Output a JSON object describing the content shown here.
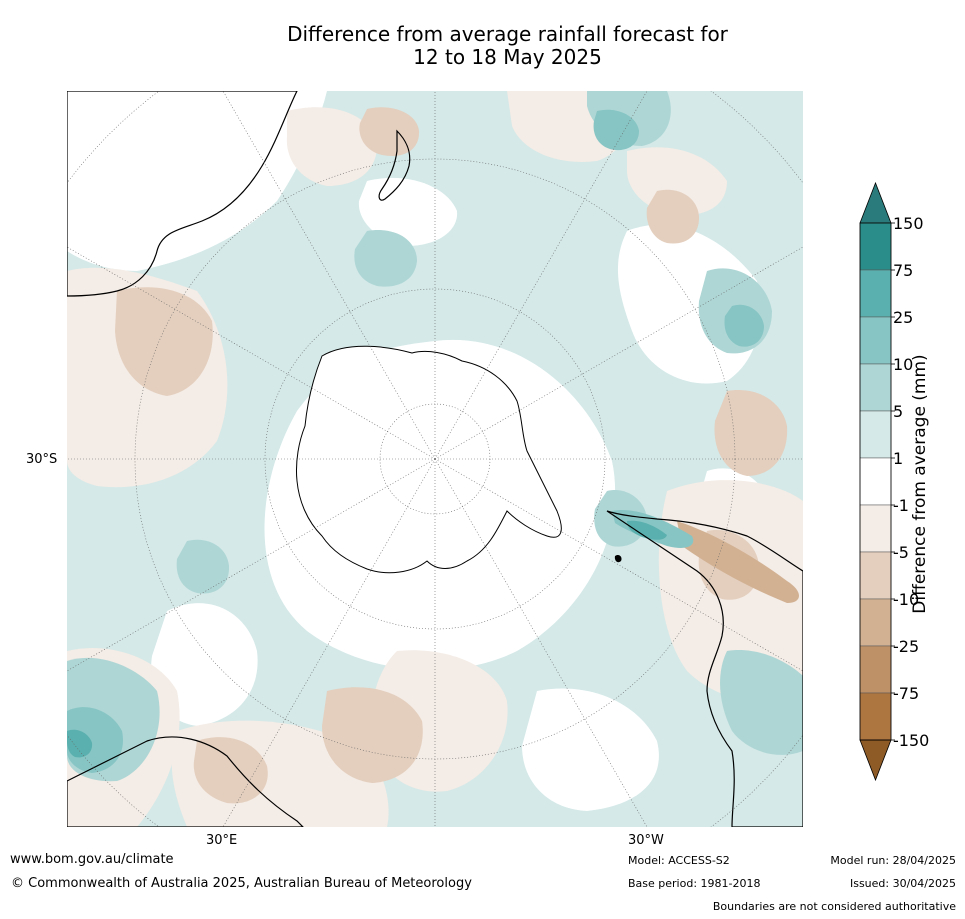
{
  "title": {
    "line1": "Difference from average rainfall forecast for",
    "line2": "12 to 18 May 2025"
  },
  "map": {
    "projection": "south polar stereographic",
    "latitude_label": "30°S",
    "longitude_labels": {
      "east": "30°E",
      "west": "30°W"
    }
  },
  "colorbar": {
    "label": "Difference from average (mm)",
    "levels": [
      {
        "tick": "150",
        "color": "#2a8d8a"
      },
      {
        "tick": "75",
        "color": "#5ab0ae"
      },
      {
        "tick": "25",
        "color": "#86c5c4"
      },
      {
        "tick": "10",
        "color": "#aed6d5"
      },
      {
        "tick": "5",
        "color": "#d4e9e8"
      },
      {
        "tick": "1",
        "color": "#ffffff"
      },
      {
        "tick": "-1",
        "color": "#f4ece6"
      },
      {
        "tick": "-5",
        "color": "#e4cfbe"
      },
      {
        "tick": "-10",
        "color": "#d2b193"
      },
      {
        "tick": "-25",
        "color": "#bf9167"
      },
      {
        "tick": "-75",
        "color": "#ad7540"
      },
      {
        "tick": "-150",
        "color": "#8e5a25"
      }
    ],
    "top_extension_color": "#2a7b7b",
    "bottom_extension_color": "#8e5a25"
  },
  "footer": {
    "website": "www.bom.gov.au/climate",
    "copyright": "© Commonwealth of Australia 2025, Australian Bureau of Meteorology",
    "model": "Model: ACCESS-S2",
    "base_period": "Base period: 1981-2018",
    "model_run": "Model run: 28/04/2025",
    "issued": "Issued: 30/04/2025",
    "disclaimer": "Boundaries are not considered authoritative"
  }
}
